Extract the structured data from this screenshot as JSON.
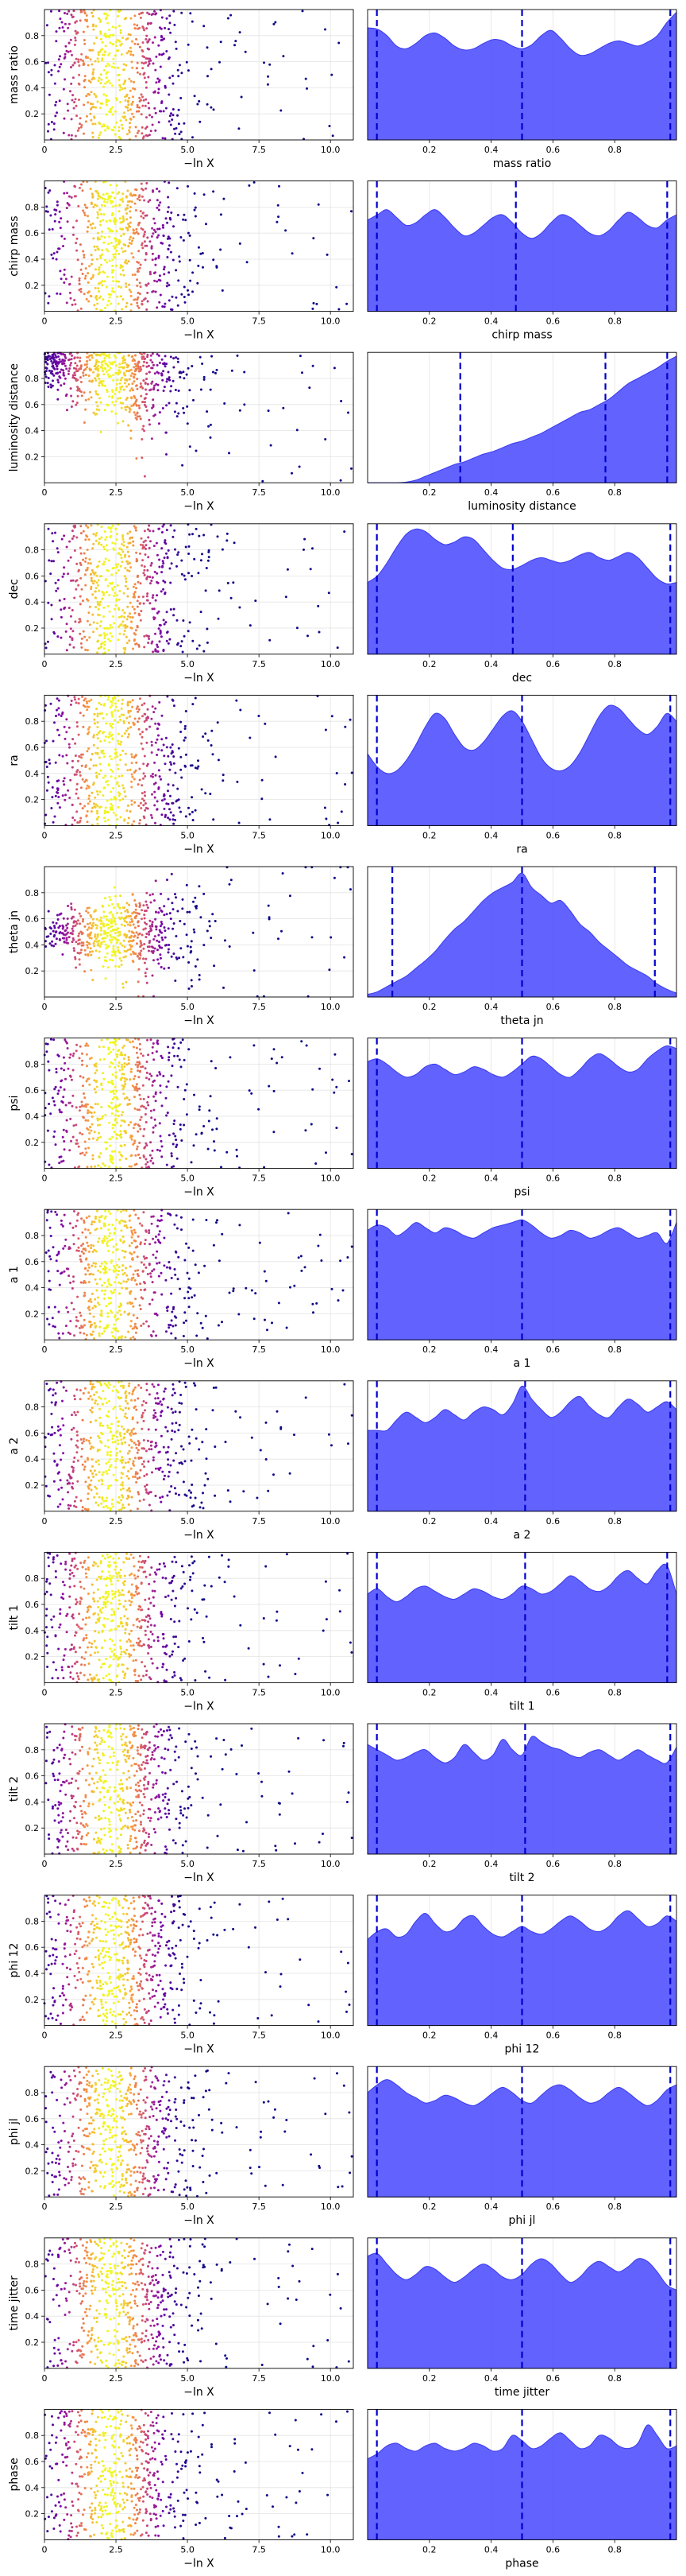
{
  "chart_data": {
    "type": "scatter",
    "layout": "trace plots: left scatter of sample value vs -ln X colored by weight (plasma colormap), right 1-D posterior density with dashed quantile lines",
    "colormap": [
      "#0d0887",
      "#7e03a8",
      "#cc4778",
      "#f89540",
      "#f0f921"
    ],
    "density_color": "#5555ff",
    "quantile_line_color": "#0000cc",
    "scatter_xlabel": "−ln X",
    "scatter_xlim": [
      0,
      10.8
    ],
    "scatter_xticks": [
      "0",
      "2.5",
      "5.0",
      "7.5",
      "10.0"
    ],
    "scatter_xtick_values": [
      0,
      2.5,
      5.0,
      7.5,
      10.0
    ],
    "scatter_ylim": [
      0,
      1
    ],
    "y_ticks": [
      "0.2",
      "0.4",
      "0.6",
      "0.8"
    ],
    "y_tick_values": [
      0.2,
      0.4,
      0.6,
      0.8
    ],
    "density_xlim": [
      0,
      1
    ],
    "parameters": [
      {
        "name": "mass ratio",
        "kind": "uniform",
        "quantiles": [
          0.03,
          0.5,
          0.98
        ],
        "density_xticks": [
          "0.2",
          "0.4",
          "0.6",
          "0.8"
        ],
        "density": [
          0.86,
          0.85,
          0.8,
          0.72,
          0.7,
          0.74,
          0.8,
          0.82,
          0.78,
          0.72,
          0.69,
          0.7,
          0.74,
          0.77,
          0.76,
          0.72,
          0.7,
          0.73,
          0.8,
          0.84,
          0.78,
          0.7,
          0.65,
          0.66,
          0.7,
          0.74,
          0.76,
          0.74,
          0.72,
          0.75,
          0.8,
          0.9,
          0.98
        ]
      },
      {
        "name": "chirp mass",
        "kind": "uniform",
        "quantiles": [
          0.03,
          0.48,
          0.97
        ],
        "density_xticks": [
          "0.2",
          "0.4",
          "0.6",
          "0.8"
        ],
        "density": [
          0.7,
          0.74,
          0.78,
          0.72,
          0.66,
          0.68,
          0.74,
          0.78,
          0.72,
          0.64,
          0.58,
          0.6,
          0.66,
          0.72,
          0.74,
          0.68,
          0.6,
          0.56,
          0.6,
          0.68,
          0.74,
          0.72,
          0.66,
          0.6,
          0.58,
          0.62,
          0.7,
          0.76,
          0.72,
          0.66,
          0.64,
          0.7,
          0.74
        ]
      },
      {
        "name": "luminosity distance",
        "kind": "skewed",
        "quantiles": [
          0.3,
          0.77,
          0.97
        ],
        "density_xticks": [
          "0.2",
          "0.4",
          "0.6",
          "0.8"
        ],
        "density": [
          0,
          0,
          0,
          0,
          0.005,
          0.02,
          0.05,
          0.08,
          0.11,
          0.14,
          0.16,
          0.19,
          0.22,
          0.24,
          0.27,
          0.3,
          0.32,
          0.35,
          0.38,
          0.42,
          0.46,
          0.5,
          0.54,
          0.56,
          0.6,
          0.64,
          0.7,
          0.76,
          0.8,
          0.84,
          0.88,
          0.93,
          0.97
        ]
      },
      {
        "name": "dec",
        "kind": "uniform",
        "quantiles": [
          0.03,
          0.47,
          0.98
        ],
        "density_xticks": [
          "0.2",
          "0.4",
          "0.6",
          "0.8"
        ],
        "density": [
          0.55,
          0.6,
          0.7,
          0.82,
          0.92,
          0.96,
          0.94,
          0.88,
          0.84,
          0.86,
          0.9,
          0.88,
          0.8,
          0.72,
          0.66,
          0.65,
          0.68,
          0.72,
          0.74,
          0.72,
          0.7,
          0.72,
          0.76,
          0.78,
          0.74,
          0.72,
          0.75,
          0.78,
          0.74,
          0.66,
          0.58,
          0.54,
          0.55
        ]
      },
      {
        "name": "ra",
        "kind": "uniform",
        "quantiles": [
          0.03,
          0.5,
          0.98
        ],
        "density_xticks": [
          "0.2",
          "0.4",
          "0.6",
          "0.8"
        ],
        "density": [
          0.55,
          0.45,
          0.4,
          0.42,
          0.5,
          0.62,
          0.76,
          0.86,
          0.82,
          0.7,
          0.6,
          0.58,
          0.64,
          0.74,
          0.84,
          0.88,
          0.8,
          0.66,
          0.52,
          0.44,
          0.42,
          0.46,
          0.56,
          0.7,
          0.84,
          0.92,
          0.9,
          0.82,
          0.74,
          0.7,
          0.76,
          0.86,
          0.8
        ]
      },
      {
        "name": "theta jn",
        "kind": "peaked",
        "quantiles": [
          0.08,
          0.5,
          0.93
        ],
        "density_xticks": [
          "0.2",
          "0.4",
          "0.6",
          "0.8"
        ],
        "density": [
          0.02,
          0.04,
          0.08,
          0.12,
          0.16,
          0.22,
          0.28,
          0.35,
          0.44,
          0.52,
          0.58,
          0.66,
          0.74,
          0.8,
          0.84,
          0.88,
          0.95,
          0.84,
          0.78,
          0.72,
          0.74,
          0.66,
          0.56,
          0.5,
          0.42,
          0.36,
          0.3,
          0.24,
          0.2,
          0.16,
          0.1,
          0.06,
          0.03
        ]
      },
      {
        "name": "psi",
        "kind": "uniform",
        "quantiles": [
          0.03,
          0.5,
          0.98
        ],
        "density_xticks": [
          "0.2",
          "0.4",
          "0.6",
          "0.8"
        ],
        "density": [
          0.82,
          0.84,
          0.8,
          0.74,
          0.7,
          0.72,
          0.78,
          0.8,
          0.76,
          0.72,
          0.74,
          0.78,
          0.76,
          0.72,
          0.7,
          0.74,
          0.8,
          0.86,
          0.84,
          0.78,
          0.72,
          0.7,
          0.76,
          0.84,
          0.88,
          0.84,
          0.78,
          0.74,
          0.76,
          0.84,
          0.9,
          0.94,
          0.92
        ]
      },
      {
        "name": "a 1",
        "kind": "uniform",
        "quantiles": [
          0.03,
          0.5,
          0.98
        ],
        "density_xticks": [
          "0.2",
          "0.4",
          "0.6",
          "0.8"
        ],
        "density": [
          0.84,
          0.88,
          0.86,
          0.8,
          0.84,
          0.9,
          0.86,
          0.82,
          0.86,
          0.84,
          0.8,
          0.78,
          0.82,
          0.86,
          0.88,
          0.9,
          0.92,
          0.88,
          0.82,
          0.78,
          0.8,
          0.84,
          0.82,
          0.78,
          0.8,
          0.84,
          0.86,
          0.82,
          0.78,
          0.8,
          0.82,
          0.74,
          0.9
        ]
      },
      {
        "name": "a 2",
        "kind": "uniform",
        "quantiles": [
          0.03,
          0.51,
          0.98
        ],
        "density_xticks": [
          "0.2",
          "0.4",
          "0.6",
          "0.8"
        ],
        "density": [
          0.62,
          0.62,
          0.62,
          0.7,
          0.76,
          0.72,
          0.68,
          0.72,
          0.78,
          0.74,
          0.7,
          0.76,
          0.8,
          0.78,
          0.74,
          0.82,
          0.96,
          0.86,
          0.78,
          0.72,
          0.76,
          0.84,
          0.88,
          0.8,
          0.74,
          0.72,
          0.8,
          0.86,
          0.82,
          0.76,
          0.8,
          0.84,
          0.78
        ]
      },
      {
        "name": "tilt 1",
        "kind": "uniform",
        "quantiles": [
          0.03,
          0.51,
          0.97
        ],
        "density_xticks": [
          "0.2",
          "0.4",
          "0.6",
          "0.8"
        ],
        "density": [
          0.68,
          0.72,
          0.66,
          0.62,
          0.66,
          0.72,
          0.74,
          0.7,
          0.66,
          0.64,
          0.68,
          0.72,
          0.7,
          0.66,
          0.64,
          0.68,
          0.74,
          0.72,
          0.68,
          0.7,
          0.76,
          0.82,
          0.78,
          0.72,
          0.7,
          0.74,
          0.82,
          0.86,
          0.8,
          0.76,
          0.86,
          0.9,
          0.68
        ]
      },
      {
        "name": "tilt 2",
        "kind": "uniform",
        "quantiles": [
          0.03,
          0.51,
          0.98
        ],
        "density_xticks": [
          "0.2",
          "0.4",
          "0.6",
          "0.8"
        ],
        "density": [
          0.84,
          0.8,
          0.76,
          0.72,
          0.74,
          0.78,
          0.8,
          0.74,
          0.7,
          0.74,
          0.84,
          0.78,
          0.72,
          0.76,
          0.88,
          0.8,
          0.76,
          0.9,
          0.86,
          0.82,
          0.8,
          0.76,
          0.74,
          0.78,
          0.8,
          0.76,
          0.72,
          0.76,
          0.8,
          0.76,
          0.72,
          0.7,
          0.82
        ]
      },
      {
        "name": "phi 12",
        "kind": "uniform",
        "quantiles": [
          0.03,
          0.5,
          0.98
        ],
        "density_xticks": [
          "0.2",
          "0.4",
          "0.6",
          "0.8"
        ],
        "density": [
          0.66,
          0.72,
          0.74,
          0.68,
          0.7,
          0.8,
          0.86,
          0.78,
          0.72,
          0.74,
          0.82,
          0.84,
          0.76,
          0.7,
          0.68,
          0.72,
          0.76,
          0.72,
          0.7,
          0.74,
          0.8,
          0.84,
          0.8,
          0.74,
          0.72,
          0.76,
          0.84,
          0.88,
          0.82,
          0.76,
          0.78,
          0.84,
          0.8
        ]
      },
      {
        "name": "phi jl",
        "kind": "uniform",
        "quantiles": [
          0.03,
          0.5,
          0.98
        ],
        "density_xticks": [
          "0.2",
          "0.4",
          "0.6",
          "0.8"
        ],
        "density": [
          0.8,
          0.86,
          0.9,
          0.86,
          0.8,
          0.76,
          0.72,
          0.74,
          0.78,
          0.76,
          0.72,
          0.7,
          0.74,
          0.8,
          0.84,
          0.8,
          0.74,
          0.72,
          0.78,
          0.84,
          0.86,
          0.82,
          0.76,
          0.72,
          0.74,
          0.8,
          0.84,
          0.8,
          0.74,
          0.7,
          0.74,
          0.82,
          0.86
        ]
      },
      {
        "name": "time jitter",
        "kind": "uniform",
        "quantiles": [
          0.03,
          0.5,
          0.98
        ],
        "density_xticks": [
          "0.2",
          "0.4",
          "0.6",
          "0.8"
        ],
        "density": [
          0.86,
          0.88,
          0.8,
          0.72,
          0.68,
          0.72,
          0.78,
          0.76,
          0.7,
          0.66,
          0.7,
          0.76,
          0.8,
          0.76,
          0.7,
          0.68,
          0.72,
          0.8,
          0.84,
          0.8,
          0.72,
          0.66,
          0.7,
          0.78,
          0.82,
          0.78,
          0.74,
          0.78,
          0.84,
          0.82,
          0.74,
          0.64,
          0.6
        ]
      },
      {
        "name": "phase",
        "kind": "uniform",
        "quantiles": [
          0.03,
          0.5,
          0.98
        ],
        "density_xticks": [
          "0.2",
          "0.4",
          "0.6",
          "0.8"
        ],
        "density": [
          0.62,
          0.66,
          0.72,
          0.74,
          0.7,
          0.68,
          0.72,
          0.74,
          0.7,
          0.68,
          0.7,
          0.74,
          0.72,
          0.68,
          0.7,
          0.8,
          0.76,
          0.7,
          0.72,
          0.78,
          0.82,
          0.76,
          0.7,
          0.72,
          0.8,
          0.78,
          0.72,
          0.7,
          0.74,
          0.88,
          0.8,
          0.7,
          0.72
        ]
      }
    ]
  }
}
